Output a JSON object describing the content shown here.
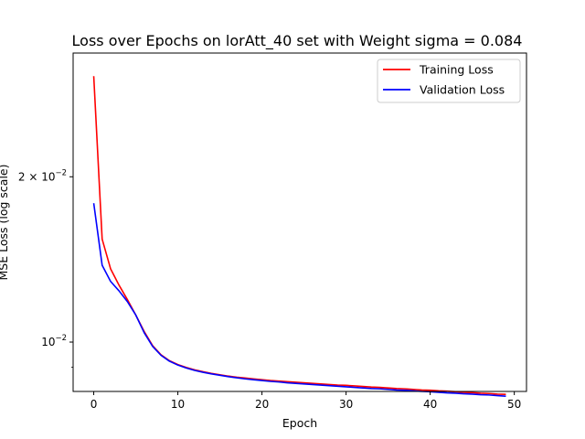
{
  "chart_data": {
    "type": "line",
    "title": "Loss over Epochs on lorAtt_40 set with Weight sigma = 0.084",
    "xlabel": "Epoch",
    "ylabel": "MSE Loss (log scale)",
    "yscale": "log",
    "xlim": [
      -2.45,
      51.45
    ],
    "ylim": [
      0.00813,
      0.0336
    ],
    "xticks": [
      0,
      10,
      20,
      30,
      40,
      50
    ],
    "xtick_labels": [
      "0",
      "10",
      "20",
      "30",
      "40",
      "50"
    ],
    "yticks": [
      0.01,
      0.02
    ],
    "ytick_labels": [
      "10⁻²",
      "2 × 10⁻²"
    ],
    "ytick_label_parts": [
      {
        "base": "10",
        "exp": "−2"
      },
      {
        "prefix": "2 × ",
        "base": "10",
        "exp": "−2"
      }
    ],
    "minor_yticks": [
      0.009
    ],
    "grid": false,
    "legend_position": "top-right",
    "x": [
      0,
      1,
      2,
      3,
      4,
      5,
      6,
      7,
      8,
      9,
      10,
      11,
      12,
      13,
      14,
      15,
      16,
      17,
      18,
      19,
      20,
      21,
      22,
      23,
      24,
      25,
      26,
      27,
      28,
      29,
      30,
      31,
      32,
      33,
      34,
      35,
      36,
      37,
      38,
      39,
      40,
      41,
      42,
      43,
      44,
      45,
      46,
      47,
      48,
      49
    ],
    "series": [
      {
        "name": "Training Loss",
        "color": "#ff0000",
        "values": [
          0.0305,
          0.0154,
          0.0136,
          0.0127,
          0.01195,
          0.0112,
          0.01045,
          0.00985,
          0.00948,
          0.00925,
          0.0091,
          0.00899,
          0.0089,
          0.00883,
          0.00877,
          0.00872,
          0.00867,
          0.00863,
          0.0086,
          0.00857,
          0.00854,
          0.00851,
          0.00849,
          0.00847,
          0.00845,
          0.00843,
          0.00841,
          0.00839,
          0.00837,
          0.00835,
          0.00834,
          0.00832,
          0.0083,
          0.00828,
          0.00827,
          0.00825,
          0.00823,
          0.00822,
          0.0082,
          0.00818,
          0.00817,
          0.00815,
          0.00814,
          0.00812,
          0.0081,
          0.00809,
          0.00807,
          0.00806,
          0.00804,
          0.00803
        ]
      },
      {
        "name": "Validation Loss",
        "color": "#0000ff",
        "values": [
          0.0179,
          0.0138,
          0.0129,
          0.0124,
          0.01185,
          0.0112,
          0.0104,
          0.00982,
          0.00946,
          0.00923,
          0.00908,
          0.00897,
          0.00888,
          0.00881,
          0.00875,
          0.0087,
          0.00865,
          0.00861,
          0.00857,
          0.00854,
          0.00851,
          0.00848,
          0.00846,
          0.00843,
          0.00841,
          0.00839,
          0.00837,
          0.00835,
          0.00833,
          0.00831,
          0.00829,
          0.00827,
          0.00825,
          0.00823,
          0.00822,
          0.0082,
          0.00818,
          0.00817,
          0.00815,
          0.00813,
          0.00812,
          0.0081,
          0.00808,
          0.00807,
          0.00805,
          0.00804,
          0.00802,
          0.00801,
          0.00799,
          0.00797
        ]
      }
    ]
  }
}
